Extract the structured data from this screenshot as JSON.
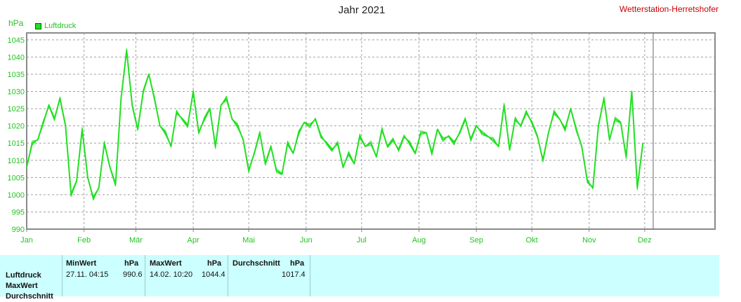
{
  "header": {
    "title": "Jahr 2021",
    "station": "Wetterstation-Herretshofer",
    "unit": "hPa",
    "legend": "Luftdruck"
  },
  "colors": {
    "line": "#22e022",
    "grid": "#a0a0a0",
    "axis_text": "#22c422",
    "title": "#222222",
    "station": "#cc0000"
  },
  "chart_data": {
    "type": "line",
    "title": "Jahr 2021",
    "ylabel": "hPa",
    "ylim": [
      990,
      1047
    ],
    "yticks": [
      990,
      995,
      1000,
      1005,
      1010,
      1015,
      1020,
      1025,
      1030,
      1035,
      1040,
      1045
    ],
    "ytick_labels": [
      "990",
      "995",
      "1000",
      "1005",
      "1010",
      "1015",
      "1020",
      "1025",
      "1030",
      "1035",
      "1040",
      "1045"
    ],
    "xlim": [
      0,
      372
    ],
    "xticks": [
      0,
      31,
      59,
      90,
      120,
      151,
      181,
      212,
      243,
      273,
      304,
      334
    ],
    "xtick_labels": [
      "Jan",
      "Feb",
      "Mär",
      "Apr",
      "Mai",
      "Jun",
      "Jul",
      "Aug",
      "Sep",
      "Okt",
      "Nov",
      "Dez"
    ],
    "grid": true,
    "legend_position": "top-left",
    "series": [
      {
        "name": "Luftdruck",
        "x": [
          0,
          3,
          6,
          9,
          12,
          15,
          18,
          21,
          24,
          27,
          30,
          33,
          36,
          39,
          42,
          45,
          48,
          51,
          54,
          57,
          60,
          63,
          66,
          69,
          72,
          75,
          78,
          81,
          84,
          87,
          90,
          93,
          96,
          99,
          102,
          105,
          108,
          111,
          114,
          117,
          120,
          123,
          126,
          129,
          132,
          135,
          138,
          141,
          144,
          147,
          150,
          153,
          156,
          159,
          162,
          165,
          168,
          171,
          174,
          177,
          180,
          183,
          186,
          189,
          192,
          195,
          198,
          201,
          204,
          207,
          210,
          213,
          216,
          219,
          222,
          225,
          228,
          231,
          234,
          237,
          240,
          243,
          246,
          249,
          252,
          255,
          258,
          261,
          264,
          267,
          270,
          273,
          276,
          279,
          282,
          285,
          288,
          291,
          294,
          297,
          300,
          303,
          306,
          309,
          312,
          315,
          318,
          321,
          324,
          327,
          330,
          333
        ],
        "y": [
          1008,
          1015,
          1016,
          1021,
          1026,
          1022,
          1028,
          1020,
          1000,
          1004,
          1019,
          1005,
          999,
          1002,
          1015,
          1008,
          1003,
          1028,
          1042,
          1026,
          1019,
          1030,
          1035,
          1028,
          1020,
          1018,
          1014,
          1024,
          1022,
          1020,
          1030,
          1018,
          1022,
          1025,
          1014,
          1026,
          1028,
          1022,
          1020,
          1016,
          1007,
          1012,
          1018,
          1009,
          1014,
          1007,
          1006,
          1015,
          1012,
          1018,
          1021,
          1020,
          1022,
          1017,
          1015,
          1013,
          1015,
          1008,
          1012,
          1009,
          1017,
          1014,
          1015,
          1011,
          1019,
          1014,
          1016,
          1013,
          1017,
          1015,
          1012,
          1018,
          1018,
          1012,
          1019,
          1016,
          1017,
          1015,
          1018,
          1022,
          1016,
          1020,
          1018,
          1017,
          1016,
          1014,
          1026,
          1013,
          1022,
          1020,
          1024,
          1021,
          1017,
          1010,
          1018,
          1024,
          1022,
          1019,
          1025,
          1019,
          1014,
          1004,
          1002,
          1020,
          1028,
          1016,
          1022,
          1021,
          1011,
          1030,
          1002,
          1015
        ]
      }
    ]
  },
  "stats": {
    "row_labels": [
      "Luftdruck",
      "MaxWert",
      "Durchschnitt"
    ],
    "min": {
      "header": "MinWert",
      "unit": "hPa",
      "time": "27.11.  04:15",
      "value": "990.6"
    },
    "max": {
      "header": "MaxWert",
      "unit": "hPa",
      "time": "14.02.  10:20",
      "value": "1044.4"
    },
    "avg": {
      "header": "Durchschnitt",
      "unit": "hPa",
      "value": "1017.4"
    }
  }
}
